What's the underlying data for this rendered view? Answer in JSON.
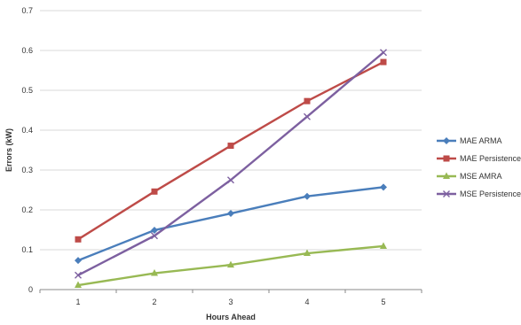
{
  "chart_data": {
    "type": "line",
    "title": "",
    "xlabel": "Hours Ahead",
    "ylabel": "Errors (kW)",
    "x": [
      1,
      2,
      3,
      4,
      5
    ],
    "x_tick_labels": [
      "1",
      "2",
      "3",
      "4",
      "5"
    ],
    "ylim": [
      0,
      0.7
    ],
    "y_ticks": [
      0,
      0.1,
      0.2,
      0.3,
      0.4,
      0.5,
      0.6,
      0.7
    ],
    "y_tick_labels": [
      "0",
      "0.1",
      "0.2",
      "0.3",
      "0.4",
      "0.5",
      "0.6",
      "0.7"
    ],
    "grid": "horizontal",
    "legend_position": "right",
    "series": [
      {
        "name": "MAE ARMA",
        "values": [
          0.073,
          0.149,
          0.191,
          0.234,
          0.257
        ],
        "color": "#4a7ebb",
        "marker": "diamond"
      },
      {
        "name": "MAE Persistence",
        "values": [
          0.126,
          0.246,
          0.361,
          0.473,
          0.571
        ],
        "color": "#be4b48",
        "marker": "square"
      },
      {
        "name": "MSE AMRA",
        "values": [
          0.011,
          0.041,
          0.062,
          0.091,
          0.109
        ],
        "color": "#98b954",
        "marker": "triangle"
      },
      {
        "name": "MSE Persistence",
        "values": [
          0.036,
          0.135,
          0.275,
          0.434,
          0.595
        ],
        "color": "#7d60a0",
        "marker": "x"
      }
    ]
  }
}
